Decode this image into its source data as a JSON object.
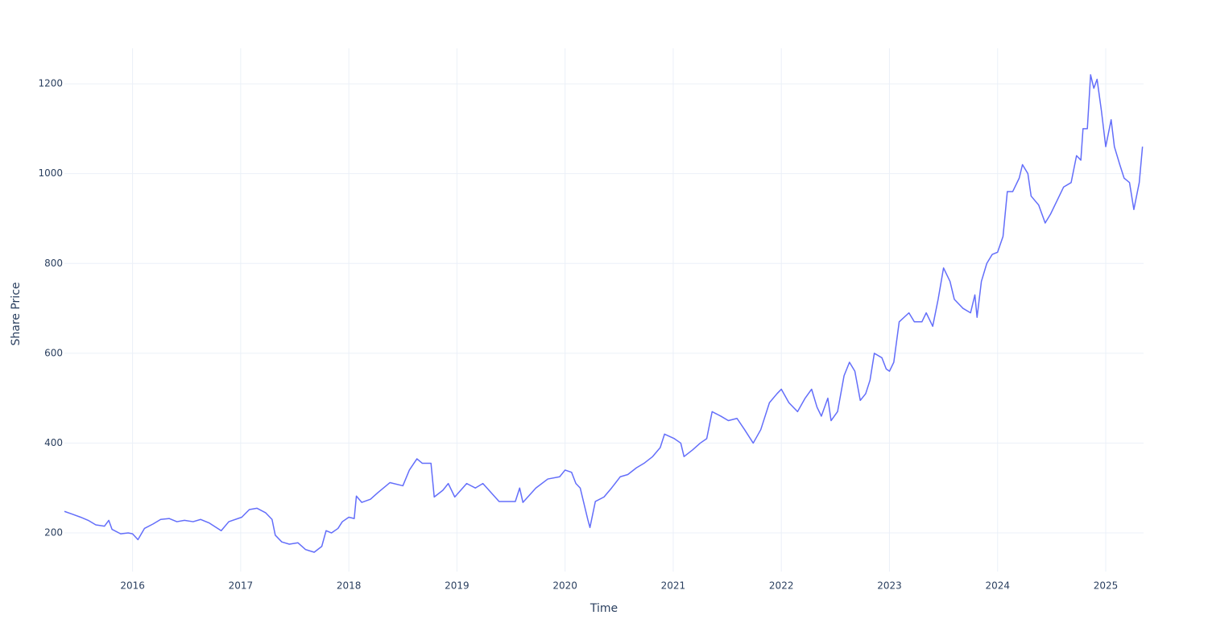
{
  "chart_data": {
    "type": "line",
    "x_label": "Time",
    "y_label": "Share Price",
    "x": [
      2015.37,
      2015.44,
      2015.52,
      2015.59,
      2015.66,
      2015.74,
      2015.78,
      2015.81,
      2015.89,
      2015.96,
      2016.0,
      2016.05,
      2016.11,
      2016.19,
      2016.26,
      2016.34,
      2016.41,
      2016.48,
      2016.56,
      2016.63,
      2016.71,
      2016.82,
      2016.89,
      2017.01,
      2017.08,
      2017.15,
      2017.23,
      2017.29,
      2017.32,
      2017.38,
      2017.45,
      2017.53,
      2017.6,
      2017.68,
      2017.75,
      2017.79,
      2017.84,
      2017.9,
      2017.94,
      2018.0,
      2018.05,
      2018.07,
      2018.12,
      2018.2,
      2018.27,
      2018.38,
      2018.5,
      2018.56,
      2018.63,
      2018.68,
      2018.76,
      2018.79,
      2018.87,
      2018.92,
      2018.98,
      2019.09,
      2019.17,
      2019.24,
      2019.39,
      2019.54,
      2019.58,
      2019.61,
      2019.73,
      2019.84,
      2019.95,
      2020.0,
      2020.06,
      2020.1,
      2020.14,
      2020.21,
      2020.23,
      2020.28,
      2020.36,
      2020.43,
      2020.51,
      2020.58,
      2020.66,
      2020.73,
      2020.81,
      2020.88,
      2020.92,
      2021.01,
      2021.07,
      2021.1,
      2021.18,
      2021.25,
      2021.31,
      2021.36,
      2021.44,
      2021.51,
      2021.59,
      2021.66,
      2021.74,
      2021.81,
      2021.89,
      2021.96,
      2022.0,
      2022.07,
      2022.15,
      2022.22,
      2022.28,
      2022.33,
      2022.37,
      2022.43,
      2022.46,
      2022.52,
      2022.58,
      2022.63,
      2022.68,
      2022.73,
      2022.78,
      2022.82,
      2022.86,
      2022.93,
      2022.97,
      2023.0,
      2023.04,
      2023.09,
      2023.18,
      2023.23,
      2023.3,
      2023.34,
      2023.4,
      2023.45,
      2023.5,
      2023.56,
      2023.6,
      2023.68,
      2023.75,
      2023.79,
      2023.81,
      2023.85,
      2023.9,
      2023.95,
      2024.0,
      2024.05,
      2024.09,
      2024.14,
      2024.2,
      2024.23,
      2024.28,
      2024.31,
      2024.38,
      2024.44,
      2024.49,
      2024.55,
      2024.61,
      2024.68,
      2024.73,
      2024.77,
      2024.79,
      2024.83,
      2024.86,
      2024.89,
      2024.92,
      2024.96,
      2025.0,
      2025.05,
      2025.08,
      2025.13,
      2025.17,
      2025.22,
      2025.26,
      2025.31,
      2025.34
    ],
    "series": [
      {
        "name": "Share Price",
        "color": "#636efa",
        "values": [
          248,
          242,
          235,
          228,
          218,
          215,
          228,
          208,
          198,
          200,
          198,
          185,
          210,
          220,
          230,
          232,
          225,
          228,
          225,
          230,
          222,
          205,
          225,
          235,
          252,
          255,
          245,
          230,
          195,
          180,
          175,
          178,
          163,
          157,
          170,
          205,
          200,
          210,
          225,
          235,
          232,
          282,
          268,
          275,
          290,
          312,
          305,
          340,
          365,
          355,
          355,
          280,
          295,
          310,
          280,
          310,
          300,
          310,
          270,
          270,
          300,
          268,
          300,
          320,
          325,
          340,
          335,
          310,
          300,
          230,
          212,
          270,
          280,
          300,
          325,
          330,
          345,
          355,
          370,
          390,
          420,
          410,
          400,
          370,
          385,
          400,
          410,
          470,
          460,
          450,
          455,
          430,
          400,
          430,
          490,
          510,
          520,
          490,
          470,
          500,
          520,
          480,
          460,
          500,
          450,
          470,
          550,
          580,
          560,
          495,
          510,
          540,
          600,
          590,
          565,
          560,
          580,
          670,
          690,
          670,
          670,
          690,
          660,
          720,
          790,
          760,
          720,
          700,
          690,
          730,
          680,
          760,
          800,
          820,
          825,
          860,
          960,
          960,
          990,
          1020,
          1000,
          950,
          930,
          890,
          910,
          940,
          970,
          980,
          1040,
          1030,
          1100,
          1100,
          1220,
          1190,
          1210,
          1140,
          1060,
          1120,
          1060,
          1020,
          990,
          980,
          920,
          980,
          1060
        ]
      }
    ],
    "xlim": [
      2015.37,
      2025.35
    ],
    "ylim": [
      114,
      1279
    ],
    "xticks": [
      2016,
      2017,
      2018,
      2019,
      2020,
      2021,
      2022,
      2023,
      2024,
      2025
    ],
    "yticks": [
      200,
      400,
      600,
      800,
      1000,
      1200
    ],
    "grid": true
  }
}
